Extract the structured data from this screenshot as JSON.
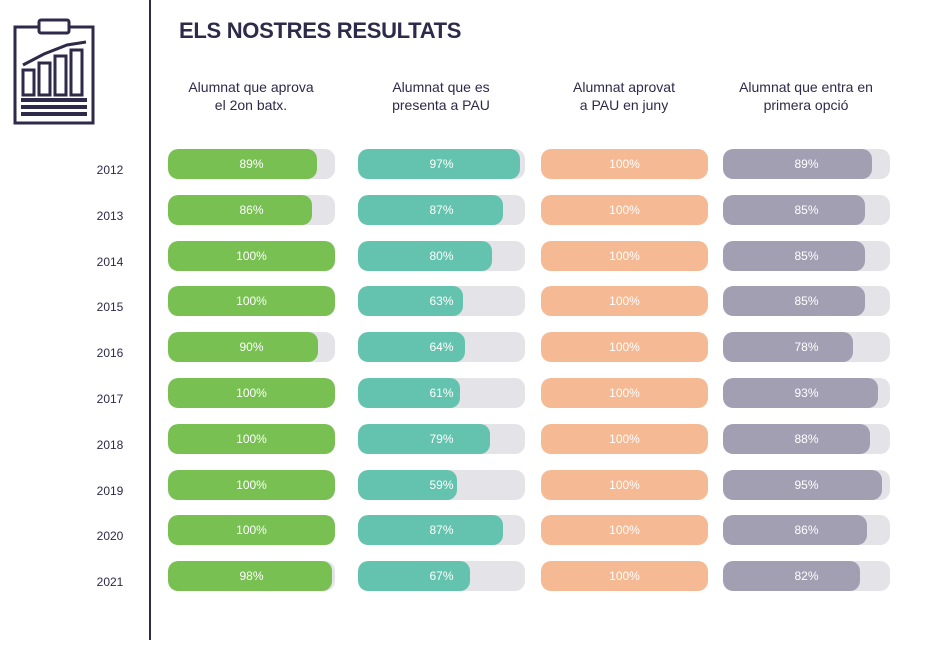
{
  "title": "ELS NOSTRES RESULTATS",
  "chart_data": {
    "type": "bar",
    "title": "ELS NOSTRES RESULTATS",
    "categories": [
      "2012",
      "2013",
      "2014",
      "2015",
      "2016",
      "2017",
      "2018",
      "2019",
      "2020",
      "2021"
    ],
    "xlim": [
      0,
      100
    ],
    "series": [
      {
        "name_lines": [
          "Alumnat que aprova",
          "el 2on batx."
        ],
        "color": "#78c052",
        "values": [
          89,
          86,
          100,
          100,
          90,
          100,
          100,
          100,
          100,
          98
        ],
        "labels": [
          "89%",
          "86%",
          "100%",
          "100%",
          "90%",
          "100%",
          "100%",
          "100%",
          "100%",
          "98%"
        ]
      },
      {
        "name_lines": [
          "Alumnat que es",
          "presenta a PAU"
        ],
        "color": "#64c3ae",
        "values": [
          97,
          87,
          80,
          63,
          64,
          61,
          79,
          59,
          87,
          67
        ],
        "labels": [
          "97%",
          "87%",
          "80%",
          "63%",
          "64%",
          "61%",
          "79%",
          "59%",
          "87%",
          "67%"
        ]
      },
      {
        "name_lines": [
          "Alumnat aprovat",
          "a PAU en juny"
        ],
        "color": "#f5b994",
        "values": [
          100,
          100,
          100,
          100,
          100,
          100,
          100,
          100,
          100,
          100
        ],
        "labels": [
          "100%",
          "100%",
          "100%",
          "100%",
          "100%",
          "100%",
          "100%",
          "100%",
          "100%",
          "100%"
        ]
      },
      {
        "name_lines": [
          "Alumnat que entra en",
          "primera opció"
        ],
        "color": "#a29fb3",
        "values": [
          89,
          85,
          85,
          85,
          78,
          93,
          88,
          95,
          86,
          82
        ],
        "labels": [
          "89%",
          "85%",
          "85%",
          "85%",
          "78%",
          "93%",
          "88%",
          "95%",
          "86%",
          "82%"
        ]
      }
    ],
    "track_color": "#e4e4e8"
  }
}
